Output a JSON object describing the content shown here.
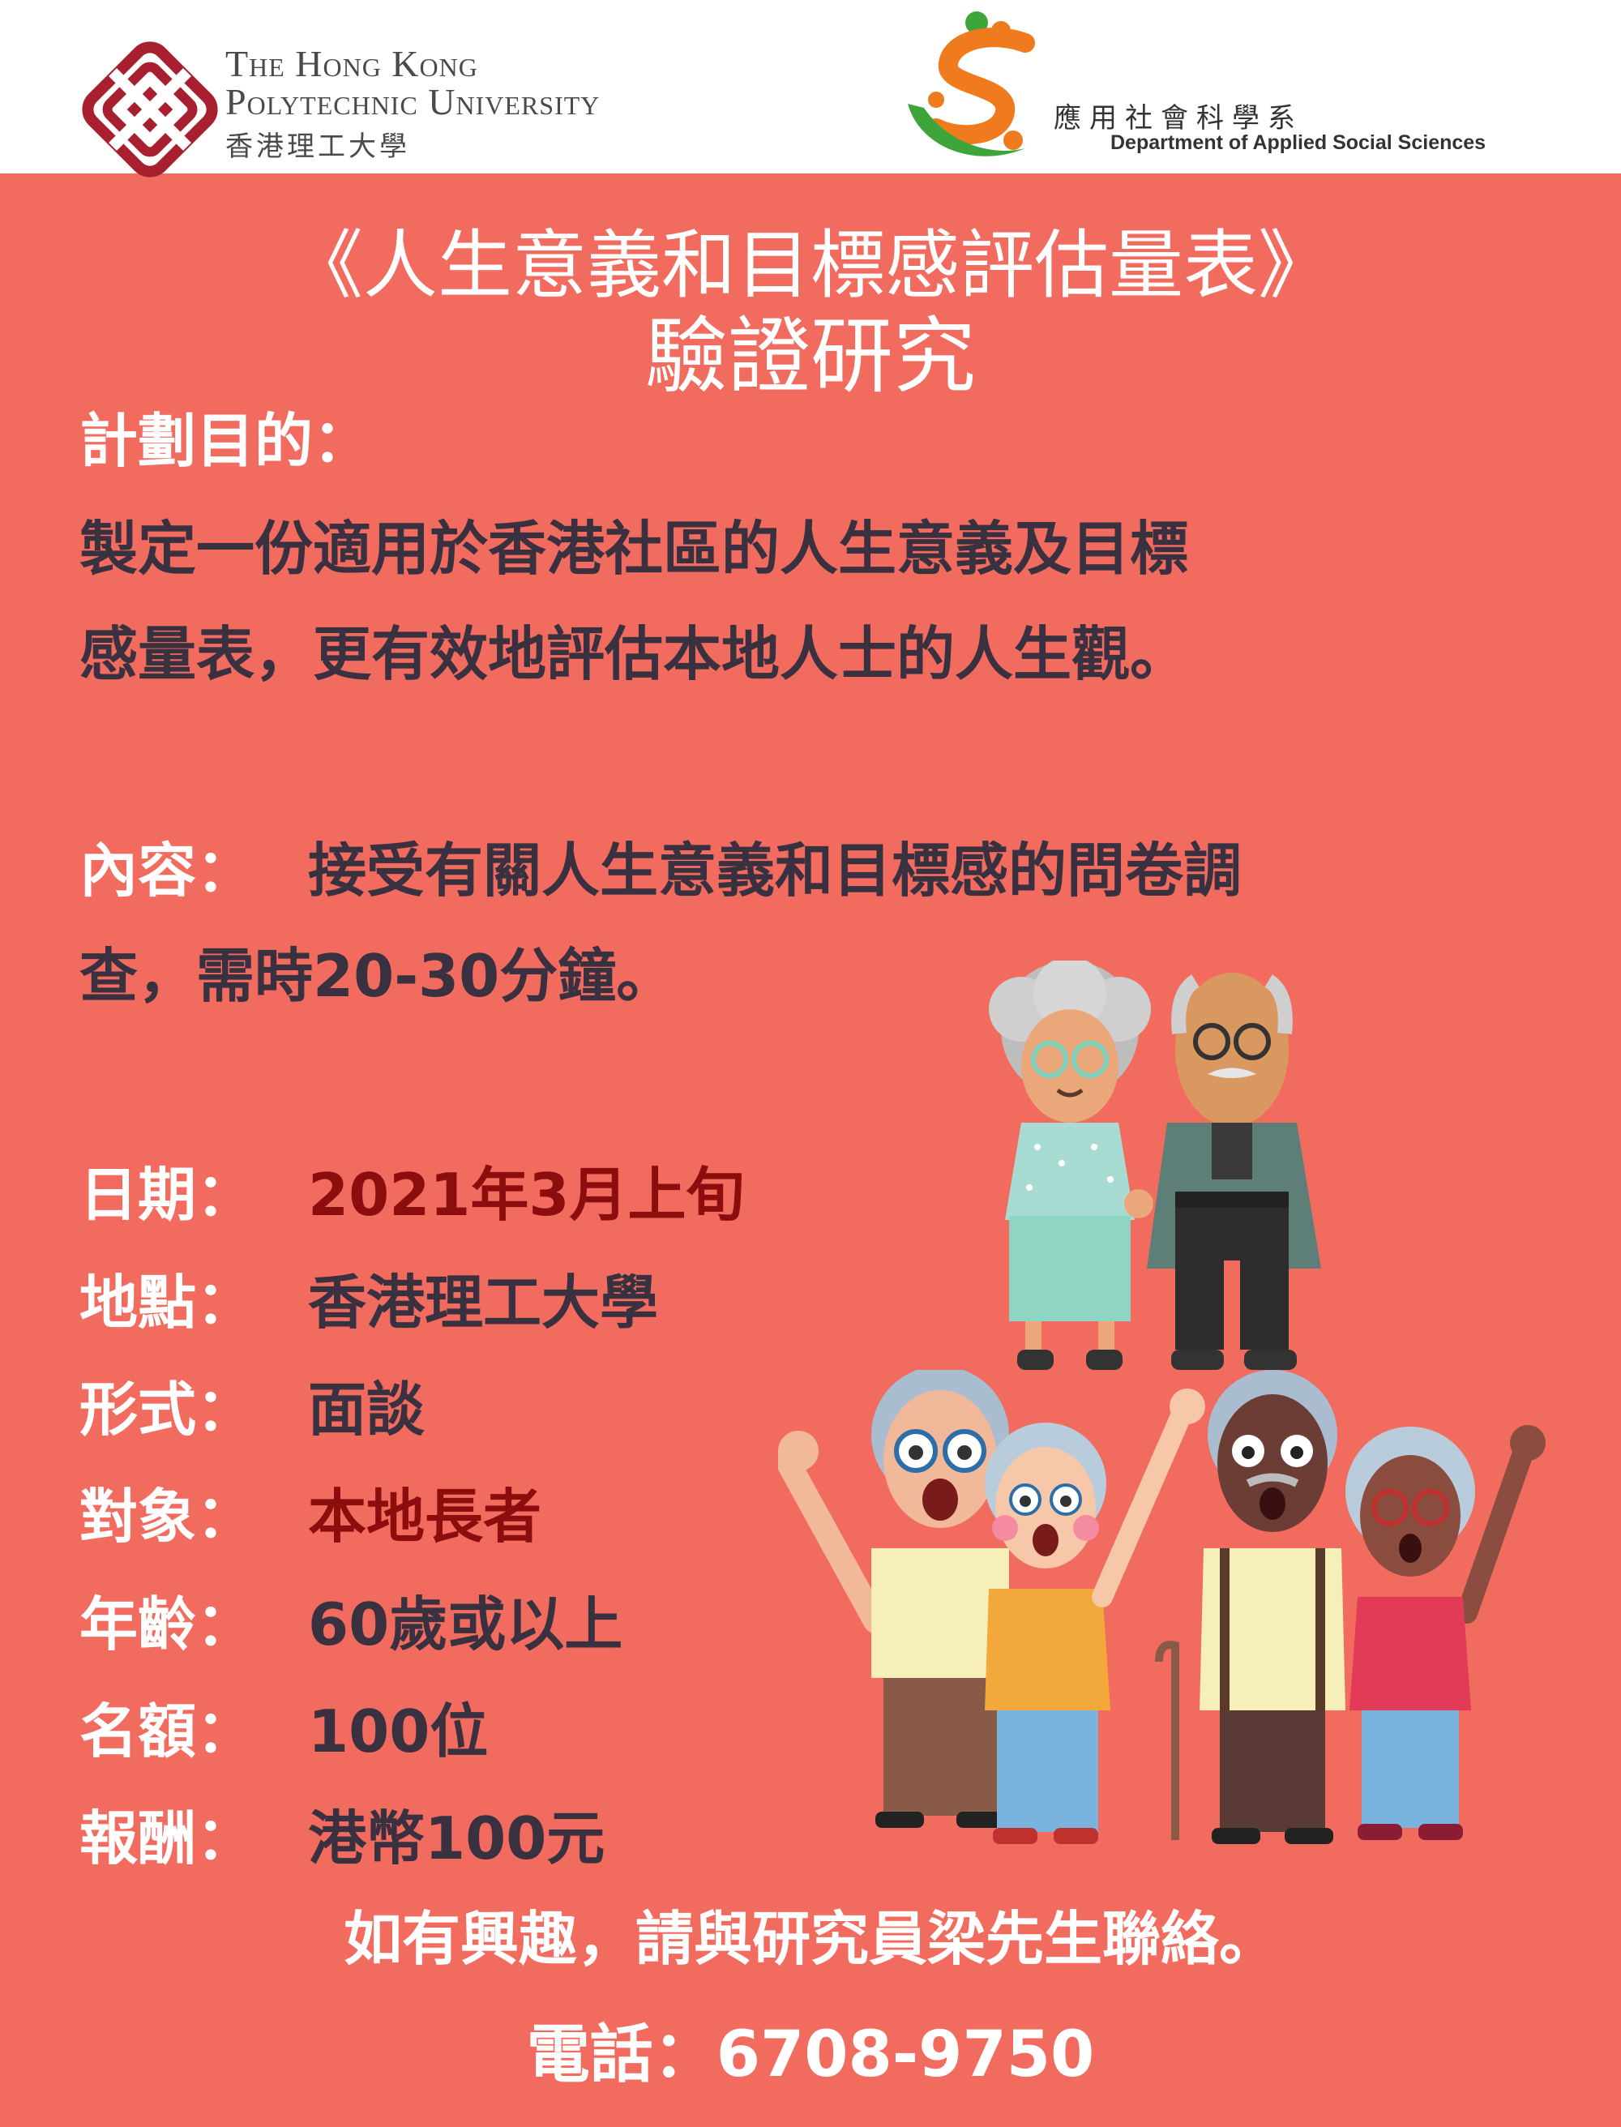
{
  "header": {
    "polyu_en_line1": "The Hong Kong",
    "polyu_en_line2": "Polytechnic University",
    "polyu_zh": "香港理工大學",
    "dept_zh": "應用社會科學系",
    "dept_en": "Department of Applied Social Sciences"
  },
  "title": {
    "line1": "《人生意義和目標感評估量表》",
    "line2": "驗證研究"
  },
  "purpose": {
    "label": "計劃目的：",
    "line1": "製定一份適用於香港社區的人生意義及目標",
    "line2": "感量表，更有效地評估本地人士的人生觀。"
  },
  "content": {
    "label": "內容：",
    "line1": "接受有關人生意義和目標感的問卷調",
    "line2": "查，需時20-30分鐘。"
  },
  "details": [
    {
      "label": "日期：",
      "value": "2021年3月上旬"
    },
    {
      "label": "地點：",
      "value": "香港理工大學"
    },
    {
      "label": "形式：",
      "value": "面談"
    },
    {
      "label": "對象：",
      "value": "本地長者"
    },
    {
      "label": "年齡：",
      "value": "60歲或以上"
    },
    {
      "label": "名額：",
      "value": "100位"
    },
    {
      "label": "報酬：",
      "value": "港幣100元"
    }
  ],
  "contact": {
    "line": "如有興趣，請與研究員梁先生聯絡。",
    "phone": "電話：6708-9750"
  },
  "colors": {
    "background": "#f26b5f",
    "dark_text": "#393040",
    "highlight_text": "#8b0d0d",
    "polyu_red": "#a8202f",
    "apss_orange": "#f07a1e",
    "apss_green": "#3da53a"
  }
}
